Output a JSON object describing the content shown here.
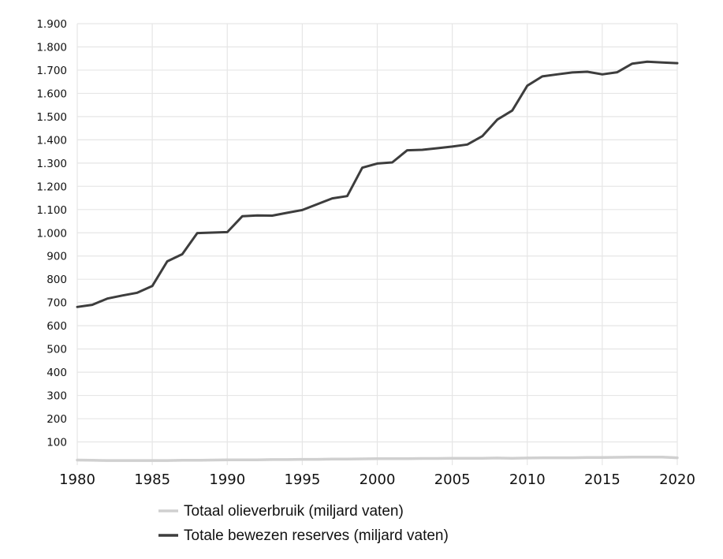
{
  "chart_data": {
    "type": "line",
    "title": "",
    "xlabel": "",
    "ylabel": "",
    "xlim": [
      1980,
      2020
    ],
    "ylim": [
      0,
      1900
    ],
    "x_ticks": [
      "1980",
      "1985",
      "1990",
      "1995",
      "2000",
      "2005",
      "2010",
      "2015",
      "2020"
    ],
    "y_ticks": [
      "100",
      "200",
      "300",
      "400",
      "500",
      "600",
      "700",
      "800",
      "900",
      "1.000",
      "1.100",
      "1.200",
      "1.300",
      "1.400",
      "1.500",
      "1.600",
      "1.700",
      "1.800",
      "1.900"
    ],
    "grid": true,
    "legend_position": "bottom",
    "x": [
      1980,
      1981,
      1982,
      1983,
      1984,
      1985,
      1986,
      1987,
      1988,
      1989,
      1990,
      1991,
      1992,
      1993,
      1994,
      1995,
      1996,
      1997,
      1998,
      1999,
      2000,
      2001,
      2002,
      2003,
      2004,
      2005,
      2006,
      2007,
      2008,
      2009,
      2010,
      2011,
      2012,
      2013,
      2014,
      2015,
      2016,
      2017,
      2018,
      2019,
      2020
    ],
    "series": [
      {
        "name": "Totaal olieverbruik (miljard vaten)",
        "color": "#d0d0d0",
        "values": [
          22,
          21,
          20,
          20,
          20,
          20,
          20,
          21,
          21,
          22,
          23,
          23,
          23,
          24,
          24,
          25,
          25,
          26,
          26,
          27,
          28,
          28,
          28,
          29,
          29,
          30,
          30,
          30,
          31,
          30,
          31,
          32,
          32,
          32,
          33,
          33,
          34,
          35,
          35,
          35,
          32
        ]
      },
      {
        "name": "Totale bewezen reserves (miljard vaten)",
        "color": "#3d3d3d",
        "values": [
          681,
          690,
          717,
          730,
          742,
          771,
          877,
          908,
          999,
          1001,
          1003,
          1071,
          1075,
          1074,
          1086,
          1098,
          1123,
          1148,
          1158,
          1280,
          1298,
          1303,
          1355,
          1357,
          1364,
          1371,
          1380,
          1416,
          1487,
          1526,
          1633,
          1673,
          1682,
          1690,
          1693,
          1682,
          1691,
          1728,
          1736,
          1733,
          1730
        ]
      }
    ]
  }
}
